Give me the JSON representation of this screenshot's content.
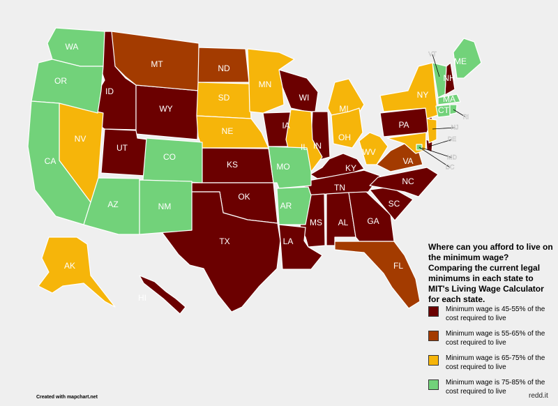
{
  "title": "Where can you afford to live on the minimum wage? Comparing the current legal minimums in each state to MIT's Living Wage Calculator for each state.",
  "groups": [
    {
      "color": "#6b0000",
      "label": "Minimum wage is 45-55% of the cost required to live",
      "states": [
        "ID",
        "WY",
        "UT",
        "KS",
        "OK",
        "TX",
        "IA",
        "WI",
        "IN",
        "KY",
        "TN",
        "MS",
        "AL",
        "GA",
        "SC",
        "NC",
        "LA",
        "PA",
        "NH",
        "HI",
        "DE"
      ]
    },
    {
      "color": "#a33b00",
      "label": "Minimum wage is 55-65% of the cost required to live",
      "states": [
        "MT",
        "ND",
        "VA",
        "FL"
      ]
    },
    {
      "color": "#f6b50a",
      "label": "Minimum wage is 65-75% of the cost required to live",
      "states": [
        "NV",
        "SD",
        "NE",
        "MN",
        "MI",
        "IL",
        "OH",
        "WV",
        "NY",
        "AK",
        "NJ",
        "MD"
      ]
    },
    {
      "color": "#72d27a",
      "label": "Minimum wage is 75-85% of the cost required to live",
      "states": [
        "WA",
        "OR",
        "CA",
        "CO",
        "AZ",
        "NM",
        "MO",
        "AR",
        "ME",
        "VT",
        "MA",
        "CT",
        "RI",
        "DC"
      ]
    }
  ],
  "credit": "Created with mapchart.net",
  "watermark": "redd.it"
}
